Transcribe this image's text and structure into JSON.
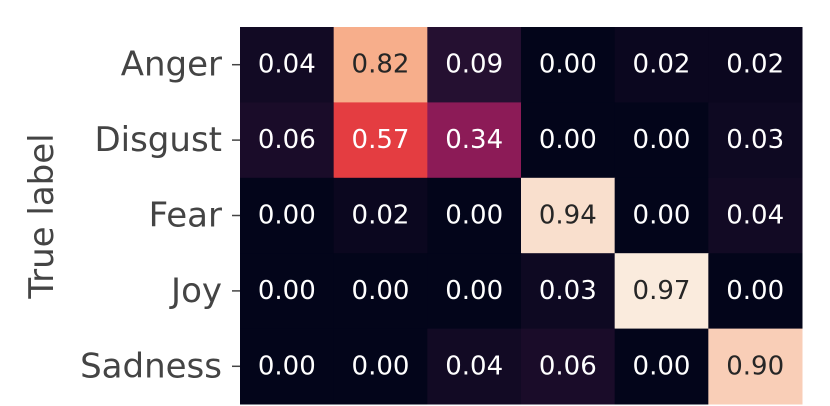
{
  "chart_data": {
    "type": "heatmap",
    "ylabel": "True label",
    "categories": [
      "Anger",
      "Disgust",
      "Fear",
      "Joy",
      "Sadness"
    ],
    "values": [
      [
        0.04,
        0.82,
        0.09,
        0.0,
        0.02,
        0.02
      ],
      [
        0.06,
        0.57,
        0.34,
        0.0,
        0.0,
        0.03
      ],
      [
        0.0,
        0.02,
        0.0,
        0.94,
        0.0,
        0.04
      ],
      [
        0.0,
        0.0,
        0.0,
        0.03,
        0.97,
        0.0
      ],
      [
        0.0,
        0.0,
        0.04,
        0.06,
        0.0,
        0.9
      ]
    ],
    "value_labels": [
      [
        "0.04",
        "0.82",
        "0.09",
        "0.00",
        "0.02",
        "0.02"
      ],
      [
        "0.06",
        "0.57",
        "0.34",
        "0.00",
        "0.00",
        "0.03"
      ],
      [
        "0.00",
        "0.02",
        "0.00",
        "0.94",
        "0.00",
        "0.04"
      ],
      [
        "0.00",
        "0.00",
        "0.00",
        "0.03",
        "0.97",
        "0.00"
      ],
      [
        "0.00",
        "0.00",
        "0.04",
        "0.06",
        "0.00",
        "0.90"
      ]
    ],
    "colormap": [
      "#03051a",
      "#4c1d4b",
      "#a11a5b",
      "#e83f3f",
      "#f69c73",
      "#faebdd"
    ]
  }
}
